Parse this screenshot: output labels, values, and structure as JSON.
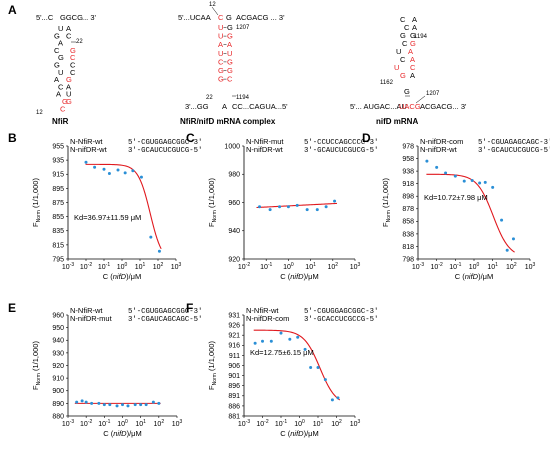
{
  "panelA": {
    "letter": "A",
    "nfiR": {
      "caption": "NfiR",
      "end5": "5'...C",
      "topBases": "GGCG",
      "end3": "... 3'",
      "left": [
        "U",
        "G",
        "A",
        "C",
        "G",
        "G",
        "U",
        "A",
        "C",
        "A",
        "G",
        "C"
      ],
      "right": [
        "A",
        "C",
        "",
        "G",
        "C",
        "C",
        "C",
        "G",
        "A",
        "U",
        "G"
      ],
      "num1": "22",
      "num2": "12"
    },
    "complex": {
      "caption": "NfiR/nifD mRNA complex",
      "top": "5'...UCAA",
      "topRed": "C",
      "topBlack": "G",
      "topRest": "ACGACG ... 3'",
      "stemL": [
        "U",
        "U",
        "A",
        "U",
        "C",
        "G",
        "G"
      ],
      "stemR": [
        "G",
        "G",
        "A",
        "U",
        "G",
        "G",
        "C"
      ],
      "nL": "12",
      "n1207": "1207",
      "n22": "22",
      "n1194": "1194",
      "bot3": "3'...GG",
      "botA": "A",
      "botMid": "CC...CAGUA...5'"
    },
    "nifd": {
      "caption": "nifD mRNA",
      "loop": [
        "C",
        "A",
        "C",
        "A",
        "G",
        "G",
        "C",
        "G",
        "U",
        "A",
        "C",
        "A",
        "U",
        "C",
        "G",
        "A",
        "G"
      ],
      "n1194": "1194",
      "n1162": "1162",
      "n1207": "1207",
      "bot5": "5'... AUGAC...AU",
      "botRed": "UACG",
      "botRest": "ACGACG... 3'"
    }
  },
  "ylabel": "F_Norm (1/1,000)",
  "xlabel": "C (nifD)/μM",
  "panels": [
    {
      "letter": "B",
      "n1": "N-NfiR-wt",
      "n2": "N-nifDR-wt",
      "s1": "5'-CGUGGAGCGGC-3'",
      "s2": "3'-GCAUCUCGUCG-5'",
      "kd": "Kd=36.97±11.59 μM"
    },
    {
      "letter": "C",
      "n1": "N-NfiR-mut",
      "n2": "N-nifDR-wt",
      "s1": "5'-CCUCCAGCCCC-3'",
      "s2": "3'-GCAUCUCGUCG-5'",
      "kd": ""
    },
    {
      "letter": "D",
      "n1": "N-nifDR-com",
      "n2": "N-nifDR-wt",
      "s1": "5'-CGUAGAGCAGC-3'",
      "s2": "3'-GCAUCUCGUCG-5'",
      "kd": "Kd=10.72±7.98 μM"
    },
    {
      "letter": "E",
      "n1": "N-NfiR-wt",
      "n2": "N-nifDR-mut",
      "s1": "5'-CGUGGAGCGGC-3'",
      "s2": "3'-CGAUCAGCAGC-5'",
      "kd": ""
    },
    {
      "letter": "F",
      "n1": "N-NfiR-wt",
      "n2": "N-nifDR-com",
      "s1": "5'-CGUGGAGCGGC-3'",
      "s2": "3'-GCACCUCGCCG-5'",
      "kd": "Kd=12.75±6.15 μM"
    }
  ],
  "chart_data": [
    {
      "panel": "B",
      "type": "scatter",
      "fit": "sigmoid",
      "xscale": "log",
      "xlim": [
        0.001,
        1000
      ],
      "ylim": [
        795,
        955
      ],
      "yticks": [
        795,
        815,
        835,
        855,
        875,
        895,
        915,
        935,
        955
      ],
      "xticks": [
        "10-3",
        "10-2",
        "10-1",
        "100",
        "101",
        "102",
        "103"
      ],
      "x": [
        0.01,
        0.03,
        0.1,
        0.2,
        0.6,
        1.5,
        4,
        12,
        40,
        120
      ],
      "y": [
        932,
        925,
        922,
        916,
        921,
        917,
        920,
        911,
        826,
        806
      ],
      "fit_params": {
        "top": 929,
        "bottom": 790,
        "kd": 36.97,
        "hill": 1.3
      }
    },
    {
      "panel": "C",
      "type": "scatter",
      "fit": "linear",
      "xscale": "log",
      "xlim": [
        0.01,
        1000
      ],
      "ylim": [
        920,
        1000
      ],
      "yticks": [
        920,
        940,
        960,
        980,
        1000
      ],
      "xticks": [
        "10-2",
        "10-1",
        "100",
        "101",
        "102",
        "103"
      ],
      "x": [
        0.05,
        0.15,
        0.4,
        1,
        2.5,
        7,
        20,
        50,
        120
      ],
      "y": [
        957,
        955,
        957,
        957,
        958,
        955,
        955,
        957,
        961
      ],
      "fit_params": {
        "y0": 956,
        "y1": 960
      }
    },
    {
      "panel": "D",
      "type": "scatter",
      "fit": "sigmoid",
      "xscale": "log",
      "xlim": [
        0.001,
        1000
      ],
      "ylim": [
        798,
        978
      ],
      "yticks": [
        798,
        818,
        838,
        858,
        878,
        898,
        918,
        938,
        958,
        978
      ],
      "xticks": [
        "10-3",
        "10-2",
        "10-1",
        "100",
        "101",
        "102",
        "103"
      ],
      "x": [
        0.003,
        0.01,
        0.03,
        0.1,
        0.3,
        0.8,
        2,
        4,
        10,
        30,
        60,
        130
      ],
      "y": [
        954,
        944,
        935,
        930,
        922,
        923,
        919,
        920,
        912,
        860,
        812,
        830
      ],
      "fit_params": {
        "top": 933,
        "bottom": 800,
        "kd": 10.72,
        "hill": 1.0
      }
    },
    {
      "panel": "E",
      "type": "scatter",
      "fit": "linear",
      "xscale": "log",
      "xlim": [
        0.001,
        1000
      ],
      "ylim": [
        880,
        960
      ],
      "yticks": [
        880,
        890,
        900,
        910,
        920,
        930,
        940,
        950,
        960
      ],
      "xticks": [
        "10-3",
        "10-2",
        "10-1",
        "100",
        "101",
        "102",
        "103"
      ],
      "x": [
        0.003,
        0.006,
        0.01,
        0.02,
        0.05,
        0.1,
        0.2,
        0.5,
        1,
        2,
        5,
        10,
        20,
        50,
        100
      ],
      "y": [
        891,
        892,
        891,
        890,
        890,
        889,
        889,
        888,
        889,
        888,
        889,
        889,
        889,
        891,
        890
      ],
      "fit_params": {
        "y0": 890,
        "y1": 890
      }
    },
    {
      "panel": "F",
      "type": "scatter",
      "fit": "sigmoid",
      "xscale": "log",
      "xlim": [
        0.001,
        1000
      ],
      "ylim": [
        881,
        931
      ],
      "yticks": [
        881,
        886,
        891,
        896,
        901,
        906,
        911,
        916,
        921,
        926,
        931
      ],
      "xticks": [
        "10-3",
        "10-2",
        "10-1",
        "100",
        "101",
        "102",
        "103"
      ],
      "x": [
        0.004,
        0.01,
        0.03,
        0.1,
        0.3,
        0.8,
        2,
        4,
        10,
        25,
        60,
        120
      ],
      "y": [
        917,
        918,
        918,
        922,
        919,
        920,
        914,
        905,
        905,
        899,
        889,
        890
      ],
      "fit_params": {
        "top": 923.5,
        "bottom": 886,
        "kd": 12.75,
        "hill": 1.0
      }
    }
  ],
  "colors": {
    "points": "#2a8fd6",
    "fit": "#e0191e",
    "highlight": "#e8282a",
    "axis": "#000000"
  }
}
